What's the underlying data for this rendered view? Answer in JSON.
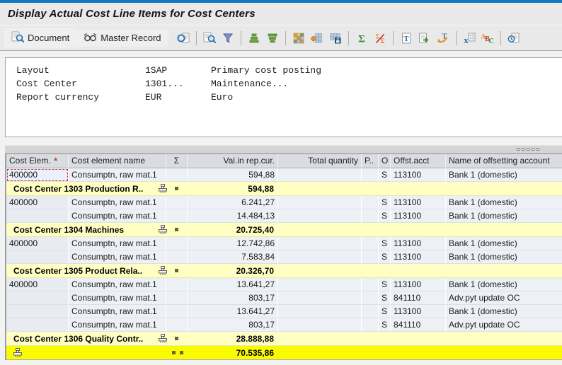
{
  "window": {
    "title": "Display Actual Cost Line Items for Cost Centers"
  },
  "colors": {
    "top_accent": "#1577BE",
    "subtotal_row": "#FFFFC4",
    "grand_total_row": "#FBFB00",
    "sort_indicator": "#C23B3B",
    "selection_border": "#CE3B3B"
  },
  "toolbar": {
    "buttons": [
      {
        "name": "document",
        "label": "Document",
        "icon": "search-document-icon"
      },
      {
        "name": "master-record",
        "label": "Master Record",
        "icon": "glasses-icon"
      }
    ],
    "icon_groups": [
      [
        "choose-detail-icon"
      ],
      [
        "find-icon",
        "filter-icon"
      ],
      [
        "sort-ascending-icon",
        "sort-descending-icon"
      ],
      [
        "current-layout-icon",
        "change-layout-icon",
        "save-layout-icon"
      ],
      [
        "total-icon",
        "subtotal-icon"
      ],
      [
        "word-processing-icon",
        "export-file-icon",
        "send-mail-icon"
      ],
      [
        "excel-icon",
        "abc-analysis-icon"
      ],
      [
        "clock-document-icon"
      ]
    ]
  },
  "info_panel": {
    "rows": [
      {
        "label": "Layout",
        "value": "1SAP",
        "text": "Primary cost posting"
      },
      {
        "label": "Cost Center",
        "value": "1301...",
        "text": "Maintenance..."
      },
      {
        "label": "Report currency",
        "value": "EUR",
        "text": "Euro"
      }
    ]
  },
  "table": {
    "header": {
      "cost_elem": "Cost Elem.",
      "name": "Cost element name",
      "sum": "Σ",
      "value": "Val.in rep.cur.",
      "quantity": "Total quantity",
      "p": "P..",
      "o": "O",
      "offst_acct": "Offst.acct",
      "offst_name": "Name of offsetting account"
    },
    "rows": [
      {
        "type": "data",
        "selected": true,
        "cost_elem": "400000",
        "name": "Consumptn, raw mat.1",
        "value": "594,88",
        "o": "S",
        "offst_acct": "113100",
        "offst_name": "Bank 1 (domestic)"
      },
      {
        "type": "subtotal",
        "label": "Cost Center 1303 Production R..",
        "value": "594,88"
      },
      {
        "type": "data",
        "cost_elem": "400000",
        "name": "Consumptn, raw mat.1",
        "value": "6.241,27",
        "o": "S",
        "offst_acct": "113100",
        "offst_name": "Bank 1 (domestic)"
      },
      {
        "type": "data",
        "cost_elem": "",
        "name": "Consumptn, raw mat.1",
        "value": "14.484,13",
        "o": "S",
        "offst_acct": "113100",
        "offst_name": "Bank 1 (domestic)"
      },
      {
        "type": "subtotal",
        "label": "Cost Center 1304 Machines",
        "value": "20.725,40"
      },
      {
        "type": "data",
        "cost_elem": "400000",
        "name": "Consumptn, raw mat.1",
        "value": "12.742,86",
        "o": "S",
        "offst_acct": "113100",
        "offst_name": "Bank 1 (domestic)"
      },
      {
        "type": "data",
        "cost_elem": "",
        "name": "Consumptn, raw mat.1",
        "value": "7.583,84",
        "o": "S",
        "offst_acct": "113100",
        "offst_name": "Bank 1 (domestic)"
      },
      {
        "type": "subtotal",
        "label": "Cost Center 1305 Product Rela..",
        "value": "20.326,70"
      },
      {
        "type": "data",
        "cost_elem": "400000",
        "name": "Consumptn, raw mat.1",
        "value": "13.641,27",
        "o": "S",
        "offst_acct": "113100",
        "offst_name": "Bank 1 (domestic)"
      },
      {
        "type": "data",
        "cost_elem": "",
        "name": "Consumptn, raw mat.1",
        "value": "803,17",
        "o": "S",
        "offst_acct": "841110",
        "offst_name": "Adv.pyt update OC"
      },
      {
        "type": "data",
        "cost_elem": "",
        "name": "Consumptn, raw mat.1",
        "value": "13.641,27",
        "o": "S",
        "offst_acct": "113100",
        "offst_name": "Bank 1 (domestic)"
      },
      {
        "type": "data",
        "cost_elem": "",
        "name": "Consumptn, raw mat.1",
        "value": "803,17",
        "o": "S",
        "offst_acct": "841110",
        "offst_name": "Adv.pyt update OC"
      },
      {
        "type": "subtotal",
        "label": "Cost Center 1306 Quality Contr..",
        "value": "28.888,88"
      },
      {
        "type": "grandtotal",
        "value": "70.535,86"
      }
    ]
  }
}
